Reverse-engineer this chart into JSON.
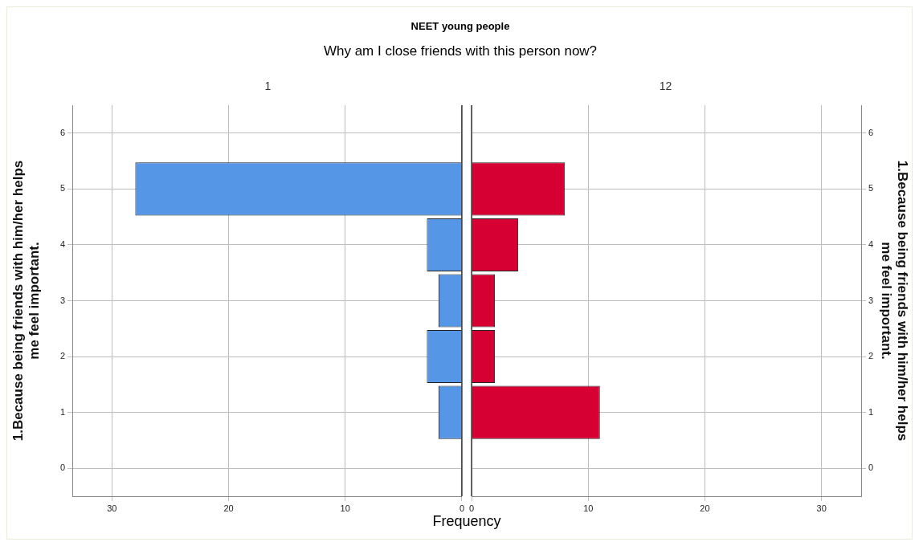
{
  "chart_data": [
    {
      "type": "bar",
      "orientation": "horizontal",
      "title": "NEET young people",
      "subtitle": "Why am I close friends with this person now?",
      "x2label": "1",
      "xlabel": "Frequency",
      "ylabel": "1.Because being friends with him/her helps me feel important.",
      "categories": [
        "6",
        "5",
        "4",
        "3",
        "2",
        "1",
        "0"
      ],
      "values": [
        null,
        28,
        3,
        2,
        3,
        2,
        null
      ],
      "color": "#5596e6",
      "xlim": [
        33.4,
        0
      ],
      "xticks": [
        30,
        20,
        10,
        0
      ],
      "grid": true
    },
    {
      "type": "bar",
      "orientation": "horizontal",
      "x2label": "12",
      "ylabel": "1.Because being friends with him/her helps me feel important.",
      "categories": [
        "6",
        "5",
        "4",
        "3",
        "2",
        "1",
        "0"
      ],
      "values": [
        null,
        8,
        4,
        2,
        2,
        11,
        null
      ],
      "color": "#d60032",
      "xlim": [
        0,
        33.4
      ],
      "xticks": [
        0,
        10,
        20,
        30
      ],
      "grid": true
    }
  ]
}
